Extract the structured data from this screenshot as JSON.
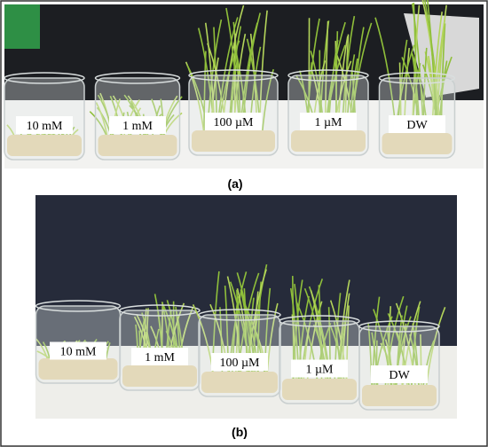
{
  "panels": [
    {
      "caption": "(a)",
      "labels": [
        "10 mM",
        "1 mM",
        "100 µM",
        "1 µM",
        "DW"
      ]
    },
    {
      "caption": "(b)",
      "labels": [
        "10 mM",
        "1 mM",
        "100 µM",
        "1 µM",
        "DW"
      ]
    }
  ]
}
